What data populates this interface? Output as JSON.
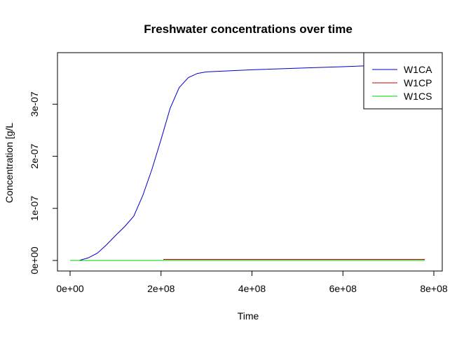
{
  "chart_data": {
    "type": "line",
    "title": "Freshwater concentrations over time",
    "xlabel": "Time",
    "ylabel": "Concentration [g/L",
    "xlim": [
      0,
      800000000
    ],
    "ylim": [
      0,
      3.8e-07
    ],
    "x_ticks": [
      {
        "value": 0,
        "label": "0e+00"
      },
      {
        "value": 200000000,
        "label": "2e+08"
      },
      {
        "value": 400000000,
        "label": "4e+08"
      },
      {
        "value": 600000000,
        "label": "6e+08"
      },
      {
        "value": 800000000,
        "label": "8e+08"
      }
    ],
    "y_ticks": [
      {
        "value": 0,
        "label": "0e+00"
      },
      {
        "value": 1e-07,
        "label": "1e-07"
      },
      {
        "value": 2e-07,
        "label": "2e-07"
      },
      {
        "value": 3e-07,
        "label": "3e-07"
      }
    ],
    "grid": false,
    "legend_position": "top-right",
    "series": [
      {
        "name": "W1CA",
        "color": "#0000cd",
        "x": [
          0,
          20000000,
          40000000,
          60000000,
          80000000,
          100000000,
          120000000,
          140000000,
          160000000,
          180000000,
          200000000,
          220000000,
          240000000,
          260000000,
          280000000,
          300000000,
          350000000,
          400000000,
          500000000,
          600000000,
          700000000,
          780000000
        ],
        "y": [
          0,
          0,
          5e-09,
          1.4e-08,
          3e-08,
          4.8e-08,
          6.5e-08,
          8.5e-08,
          1.25e-07,
          1.75e-07,
          2.32e-07,
          2.92e-07,
          3.32e-07,
          3.51e-07,
          3.59e-07,
          3.62e-07,
          3.64e-07,
          3.66e-07,
          3.69e-07,
          3.72e-07,
          3.75e-07,
          3.77e-07
        ]
      },
      {
        "name": "W1CP",
        "color": "#cc0000",
        "x": [
          205000000,
          400000000,
          600000000,
          780000000
        ],
        "y": [
          2e-09,
          2e-09,
          2e-09,
          2e-09
        ]
      },
      {
        "name": "W1CS",
        "color": "#00cc00",
        "x": [
          0,
          200000000,
          400000000,
          600000000,
          780000000
        ],
        "y": [
          0,
          0,
          0,
          0,
          0
        ]
      }
    ]
  }
}
